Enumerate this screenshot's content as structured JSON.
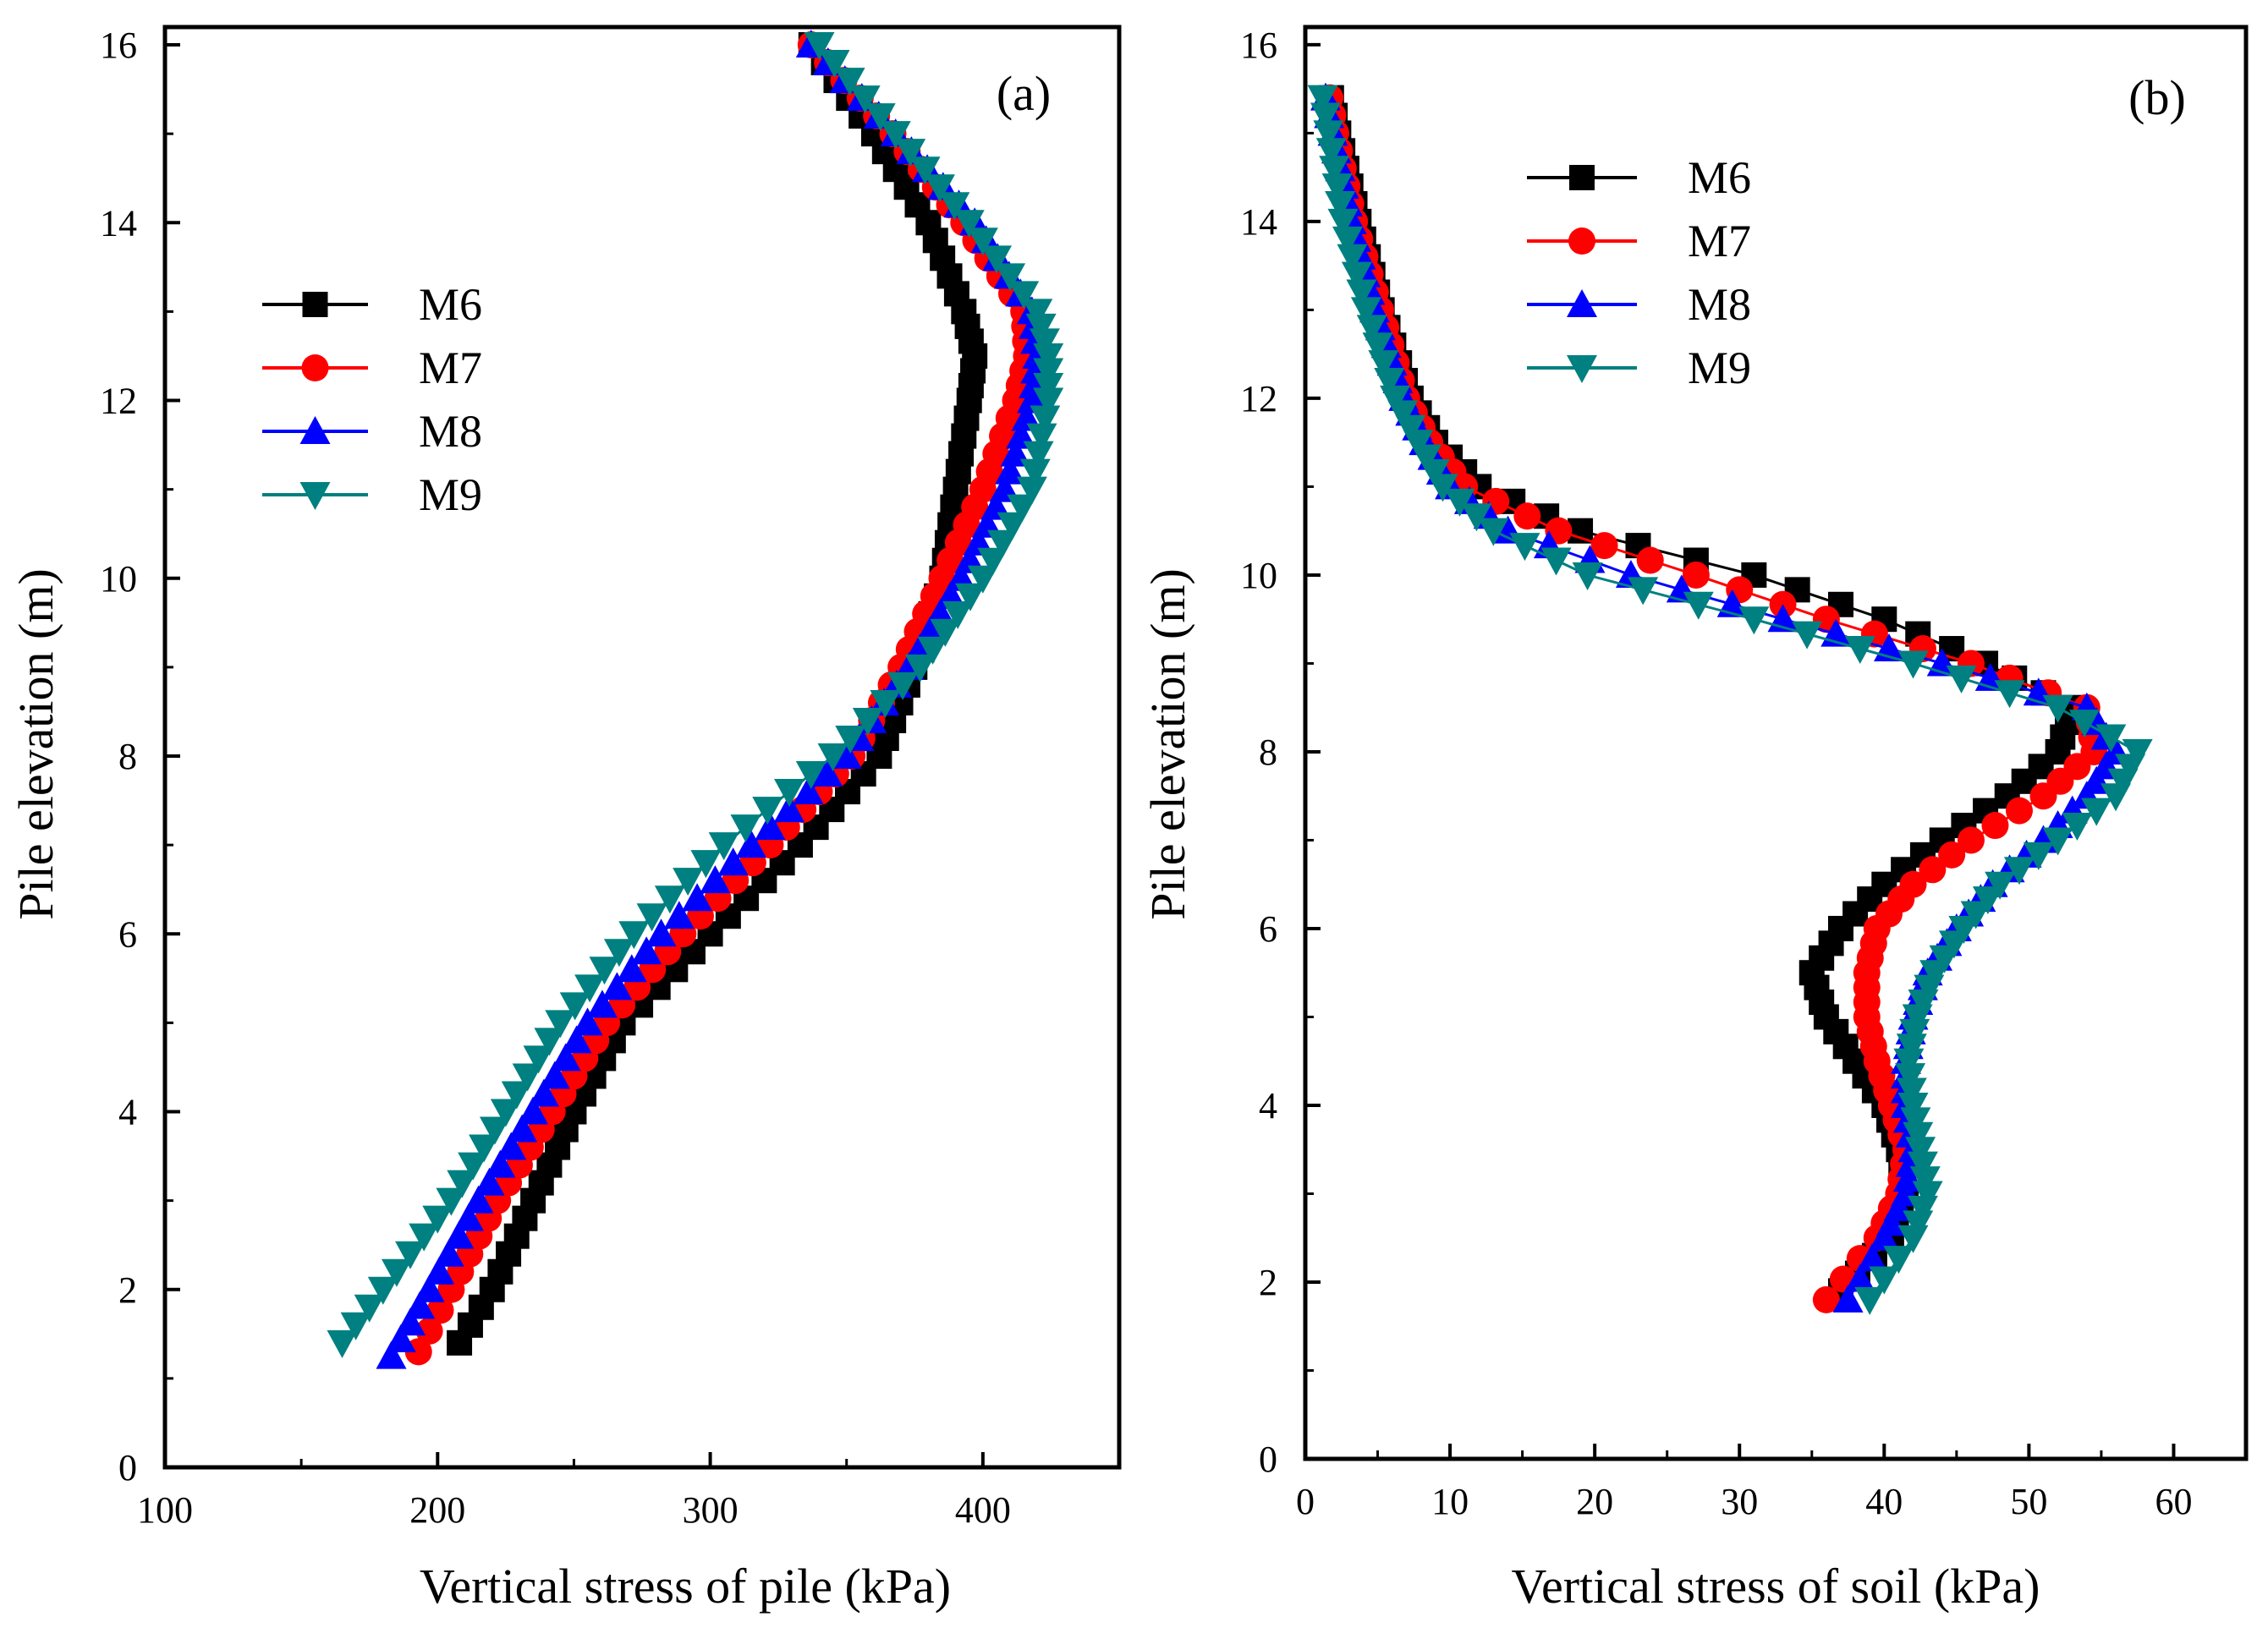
{
  "chart_data": [
    {
      "type": "line",
      "panel_tag": "(a)",
      "xlabel": "Vertical stress of pile (kPa)",
      "ylabel": "Pile elevation (m)",
      "xlim": [
        100,
        450
      ],
      "ylim": [
        0,
        16.2
      ],
      "xticks": [
        100,
        200,
        300,
        400
      ],
      "xtick_labels": [
        "100",
        "200",
        "300",
        "400"
      ],
      "yticks": [
        0,
        2,
        4,
        6,
        8,
        10,
        12,
        14,
        16
      ],
      "ytick_labels": [
        "0",
        "2",
        "4",
        "6",
        "8",
        "10",
        "12",
        "14",
        "16"
      ],
      "legend_position": "middle-left",
      "series": [
        {
          "name": "M6",
          "color": "#000000",
          "marker": "square",
          "y": [
            1.4,
            2.0,
            3.0,
            4.0,
            5.0,
            6.0,
            7.0,
            8.0,
            9.0,
            10.0,
            11.0,
            12.0,
            12.5,
            13.0,
            14.0,
            15.0,
            16.0
          ],
          "x": [
            208,
            220,
            235,
            250,
            268,
            300,
            333,
            362,
            375,
            385,
            390,
            395,
            397,
            393,
            380,
            360,
            337
          ]
        },
        {
          "name": "M7",
          "color": "#ff0000",
          "marker": "circle",
          "y": [
            1.3,
            2.0,
            3.0,
            4.0,
            5.0,
            6.0,
            7.0,
            8.0,
            9.0,
            10.0,
            11.0,
            12.0,
            12.5,
            13.0,
            14.0,
            15.0,
            16.0
          ],
          "x": [
            193,
            205,
            222,
            242,
            262,
            290,
            322,
            352,
            370,
            385,
            400,
            412,
            416,
            415,
            393,
            367,
            337
          ]
        },
        {
          "name": "M8",
          "color": "#0000ff",
          "marker": "triangle-up",
          "y": [
            1.25,
            2.0,
            3.0,
            4.0,
            5.0,
            6.0,
            7.0,
            8.0,
            9.0,
            10.0,
            11.0,
            12.0,
            12.5,
            13.0,
            14.0,
            15.0,
            16.0
          ],
          "x": [
            183,
            197,
            215,
            235,
            255,
            282,
            315,
            350,
            373,
            392,
            408,
            418,
            420,
            418,
            397,
            368,
            337
          ]
        },
        {
          "name": "M9",
          "color": "#008080",
          "marker": "triangle-down",
          "y": [
            1.4,
            2.0,
            3.0,
            4.0,
            5.0,
            6.0,
            7.0,
            8.0,
            9.0,
            10.0,
            11.0,
            12.0,
            12.5,
            13.0,
            14.0,
            15.0,
            16.0
          ],
          "x": [
            165,
            180,
            205,
            225,
            245,
            272,
            305,
            345,
            377,
            400,
            418,
            424,
            424,
            420,
            395,
            368,
            340
          ]
        }
      ]
    },
    {
      "type": "line",
      "panel_tag": "(b)",
      "xlabel": "Vertical stress of soil (kPa)",
      "ylabel": "Pile elevation (m)",
      "xlim": [
        0,
        65
      ],
      "ylim": [
        0,
        16.2
      ],
      "xticks": [
        0,
        10,
        20,
        30,
        40,
        50,
        60
      ],
      "xtick_labels": [
        "0",
        "10",
        "20",
        "30",
        "40",
        "50",
        "60"
      ],
      "yticks": [
        0,
        2,
        4,
        6,
        8,
        10,
        12,
        14,
        16
      ],
      "ytick_labels": [
        "0",
        "2",
        "4",
        "6",
        "8",
        "10",
        "12",
        "14",
        "16"
      ],
      "legend_position": "top-left",
      "series": [
        {
          "name": "M6",
          "color": "#000000",
          "marker": "square",
          "y": [
            1.9,
            2.5,
            3.0,
            3.5,
            4.0,
            4.5,
            5.0,
            5.5,
            6.0,
            6.5,
            7.0,
            7.5,
            8.0,
            8.5,
            9.0,
            9.5,
            10.0,
            10.5,
            11.0,
            11.5,
            12.0,
            13.0,
            14.0,
            15.0,
            15.4
          ],
          "x": [
            37,
            40.5,
            41.5,
            41,
            40,
            38,
            36,
            35,
            37,
            40,
            44,
            48.5,
            52,
            53,
            47,
            40,
            31,
            19,
            12,
            9,
            7.3,
            5.3,
            3.7,
            2.3,
            1.8
          ]
        },
        {
          "name": "M7",
          "color": "#ff0000",
          "marker": "circle",
          "y": [
            1.8,
            2.5,
            3.0,
            3.5,
            4.0,
            4.5,
            5.0,
            5.5,
            6.0,
            6.5,
            7.0,
            7.5,
            8.0,
            8.5,
            9.0,
            9.5,
            10.0,
            10.5,
            11.0,
            11.5,
            12.0,
            13.0,
            14.0,
            15.0,
            15.4
          ],
          "x": [
            36,
            39.5,
            41,
            41.5,
            40.5,
            39.5,
            38.8,
            38.8,
            39.5,
            42,
            46,
            51,
            54.5,
            54,
            46,
            36,
            27,
            17.5,
            11,
            8.6,
            7,
            5.2,
            3.4,
            2.1,
            1.7
          ]
        },
        {
          "name": "M8",
          "color": "#0000ff",
          "marker": "triangle-up",
          "y": [
            1.8,
            2.5,
            3.0,
            3.5,
            4.0,
            4.5,
            5.0,
            5.5,
            6.0,
            6.5,
            7.0,
            7.5,
            8.0,
            8.5,
            9.0,
            9.5,
            10.0,
            10.5,
            11.0,
            11.5,
            12.0,
            13.0,
            14.0,
            15.0,
            15.4
          ],
          "x": [
            37.5,
            40,
            41.5,
            42,
            41.5,
            41.5,
            42,
            43,
            45,
            47.5,
            51,
            54,
            56,
            54,
            44,
            33,
            22.5,
            14,
            10,
            8.2,
            6.8,
            4.8,
            3.2,
            1.9,
            1.4
          ]
        },
        {
          "name": "M9",
          "color": "#008080",
          "marker": "triangle-down",
          "y": [
            1.8,
            2.5,
            3.0,
            3.5,
            4.0,
            4.5,
            5.0,
            5.5,
            6.0,
            6.5,
            7.0,
            7.5,
            8.0,
            8.5,
            9.0,
            9.5,
            10.0,
            10.5,
            11.0,
            11.5,
            12.0,
            13.0,
            14.0,
            15.0,
            15.4
          ],
          "x": [
            39,
            42,
            43,
            42.5,
            42,
            41.7,
            42.3,
            43.5,
            45.5,
            48,
            52,
            56,
            57.5,
            52,
            42,
            31,
            19.5,
            13,
            9.5,
            7.8,
            6.2,
            4.2,
            2.6,
            1.6,
            1.2
          ]
        }
      ]
    }
  ]
}
